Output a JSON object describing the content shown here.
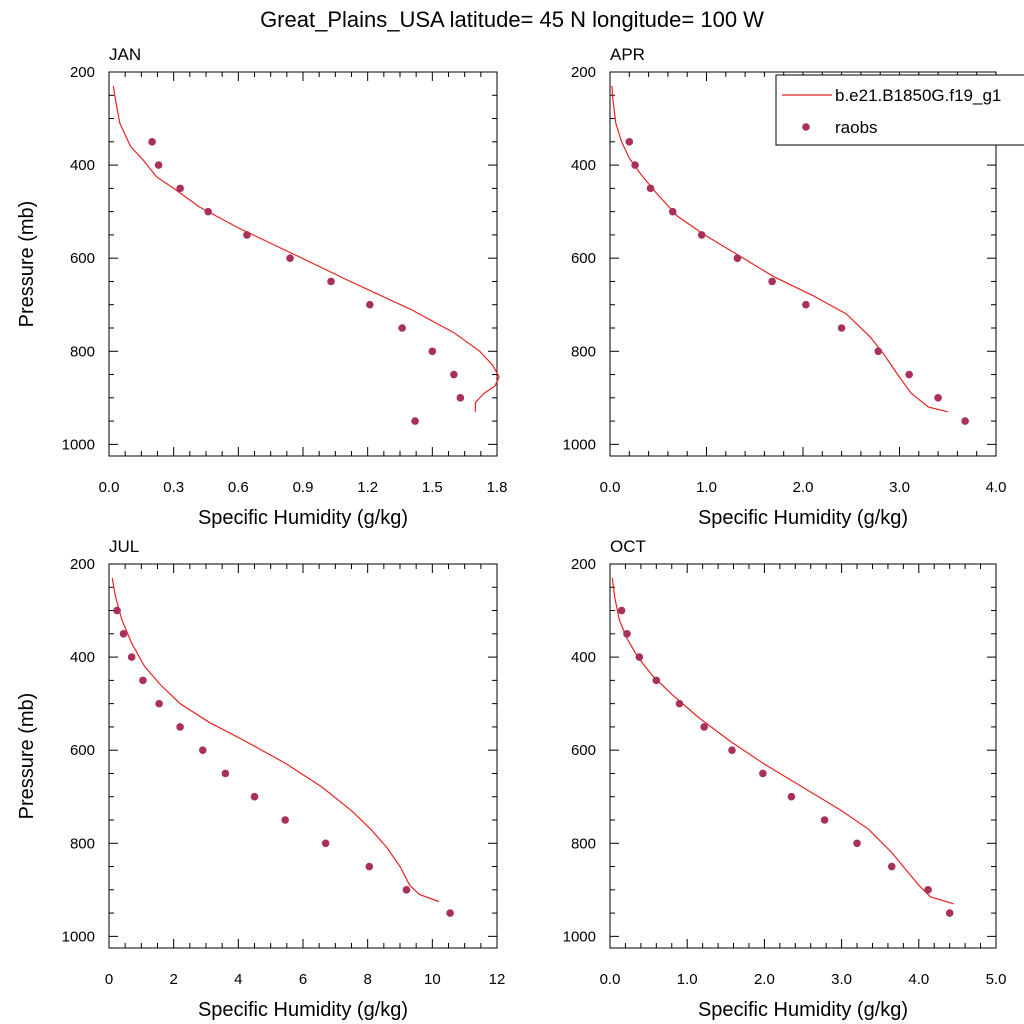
{
  "title": "Great_Plains_USA  latitude= 45 N longitude= 100 W",
  "legend": {
    "placement": "top-right",
    "entries": [
      {
        "label": "b.e21.B1850G.f19_g1",
        "type": "line",
        "color": "#e8231f"
      },
      {
        "label": "raobs",
        "type": "marker",
        "color": "#a8305a"
      }
    ]
  },
  "colors": {
    "model": "#e8231f",
    "raobs": "#a8305a"
  },
  "chart_data": [
    {
      "type": "line",
      "title": "JAN",
      "xlabel": "Specific Humidity (g/kg)",
      "ylabel": "Pressure (mb)",
      "xlim": [
        0,
        1.8
      ],
      "ylim": [
        200,
        1025
      ],
      "y_inverted": true,
      "xticks": [
        "0.0",
        "0.3",
        "0.6",
        "0.9",
        "1.2",
        "1.5",
        "1.8"
      ],
      "xtick_values": [
        0,
        0.3,
        0.6,
        0.9,
        1.2,
        1.5,
        1.8
      ],
      "yticks": [
        "200",
        "400",
        "600",
        "800",
        "1000"
      ],
      "ytick_values": [
        200,
        400,
        600,
        800,
        1000
      ],
      "series": [
        {
          "name": "b.e21.B1850G.f19_g1",
          "style": "line",
          "x": [
            0.02,
            0.03,
            0.05,
            0.1,
            0.16,
            0.22,
            0.3,
            0.42,
            0.6,
            0.85,
            1.12,
            1.4,
            1.6,
            1.72,
            1.78,
            1.81,
            1.79,
            1.74,
            1.7,
            1.7
          ],
          "y": [
            230,
            260,
            310,
            360,
            390,
            425,
            450,
            490,
            535,
            590,
            650,
            710,
            760,
            800,
            830,
            855,
            875,
            890,
            910,
            930
          ]
        },
        {
          "name": "raobs",
          "style": "marker",
          "x": [
            0.2,
            0.23,
            0.33,
            0.46,
            0.64,
            0.84,
            1.03,
            1.21,
            1.36,
            1.5,
            1.6,
            1.63,
            1.42
          ],
          "y": [
            350,
            400,
            450,
            500,
            550,
            600,
            650,
            700,
            750,
            800,
            850,
            900,
            950
          ]
        }
      ]
    },
    {
      "type": "line",
      "title": "APR",
      "xlabel": "Specific Humidity (g/kg)",
      "ylabel": "",
      "xlim": [
        0,
        4.0
      ],
      "ylim": [
        200,
        1025
      ],
      "y_inverted": true,
      "xticks": [
        "0.0",
        "1.0",
        "2.0",
        "3.0",
        "4.0"
      ],
      "xtick_values": [
        0,
        1,
        2,
        3,
        4
      ],
      "yticks": [
        "200",
        "400",
        "600",
        "800",
        "1000"
      ],
      "ytick_values": [
        200,
        400,
        600,
        800,
        1000
      ],
      "series": [
        {
          "name": "b.e21.B1850G.f19_g1",
          "style": "line",
          "x": [
            0.02,
            0.03,
            0.06,
            0.12,
            0.2,
            0.32,
            0.48,
            0.7,
            0.98,
            1.3,
            1.7,
            2.1,
            2.45,
            2.7,
            2.85,
            2.98,
            3.12,
            3.3,
            3.5
          ],
          "y": [
            230,
            260,
            310,
            350,
            385,
            420,
            460,
            510,
            550,
            590,
            640,
            680,
            720,
            770,
            810,
            850,
            890,
            920,
            930
          ]
        },
        {
          "name": "raobs",
          "style": "marker",
          "x": [
            0.2,
            0.26,
            0.42,
            0.65,
            0.95,
            1.32,
            1.68,
            2.03,
            2.4,
            2.78,
            3.1,
            3.4,
            3.68
          ],
          "y": [
            350,
            400,
            450,
            500,
            550,
            600,
            650,
            700,
            750,
            800,
            850,
            900,
            950
          ]
        }
      ]
    },
    {
      "type": "line",
      "title": "JUL",
      "xlabel": "Specific Humidity (g/kg)",
      "ylabel": "Pressure (mb)",
      "xlim": [
        0,
        12
      ],
      "ylim": [
        200,
        1025
      ],
      "y_inverted": true,
      "xticks": [
        "0",
        "2",
        "4",
        "6",
        "8",
        "10",
        "12"
      ],
      "xtick_values": [
        0,
        2,
        4,
        6,
        8,
        10,
        12
      ],
      "yticks": [
        "200",
        "400",
        "600",
        "800",
        "1000"
      ],
      "ytick_values": [
        200,
        400,
        600,
        800,
        1000
      ],
      "series": [
        {
          "name": "b.e21.B1850G.f19_g1",
          "style": "line",
          "x": [
            0.1,
            0.2,
            0.4,
            0.7,
            1.1,
            1.6,
            2.2,
            3.1,
            4.2,
            5.5,
            6.6,
            7.5,
            8.1,
            8.6,
            9.0,
            9.3,
            9.6,
            10.2
          ],
          "y": [
            230,
            270,
            320,
            370,
            420,
            460,
            500,
            540,
            580,
            630,
            680,
            730,
            770,
            810,
            850,
            890,
            910,
            925
          ]
        },
        {
          "name": "raobs",
          "style": "marker",
          "x": [
            0.25,
            0.45,
            0.7,
            1.05,
            1.55,
            2.2,
            2.9,
            3.6,
            4.5,
            5.45,
            6.7,
            8.05,
            9.2,
            10.55
          ],
          "y": [
            300,
            350,
            400,
            450,
            500,
            550,
            600,
            650,
            700,
            750,
            800,
            850,
            900,
            950
          ]
        }
      ]
    },
    {
      "type": "line",
      "title": "OCT",
      "xlabel": "Specific Humidity (g/kg)",
      "ylabel": "",
      "xlim": [
        0,
        5.0
      ],
      "ylim": [
        200,
        1025
      ],
      "y_inverted": true,
      "xticks": [
        "0.0",
        "1.0",
        "2.0",
        "3.0",
        "4.0",
        "5.0"
      ],
      "xtick_values": [
        0,
        1,
        2,
        3,
        4,
        5
      ],
      "yticks": [
        "200",
        "400",
        "600",
        "800",
        "1000"
      ],
      "ytick_values": [
        200,
        400,
        600,
        800,
        1000
      ],
      "series": [
        {
          "name": "b.e21.B1850G.f19_g1",
          "style": "line",
          "x": [
            0.03,
            0.06,
            0.12,
            0.22,
            0.36,
            0.55,
            0.8,
            1.15,
            1.55,
            2.0,
            2.5,
            3.0,
            3.35,
            3.65,
            3.85,
            4.0,
            4.15,
            4.45
          ],
          "y": [
            230,
            270,
            320,
            360,
            400,
            440,
            480,
            530,
            580,
            630,
            680,
            730,
            770,
            820,
            860,
            890,
            915,
            930
          ]
        },
        {
          "name": "raobs",
          "style": "marker",
          "x": [
            0.15,
            0.22,
            0.38,
            0.6,
            0.9,
            1.22,
            1.58,
            1.98,
            2.35,
            2.78,
            3.2,
            3.65,
            4.12,
            4.4
          ],
          "y": [
            300,
            350,
            400,
            450,
            500,
            550,
            600,
            650,
            700,
            750,
            800,
            850,
            900,
            950
          ]
        }
      ]
    }
  ]
}
